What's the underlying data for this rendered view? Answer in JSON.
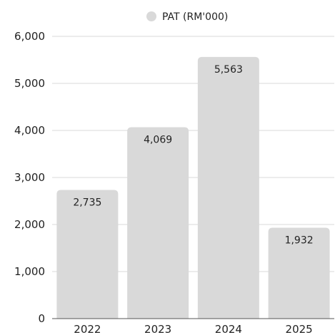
{
  "chart_data": {
    "type": "bar",
    "categories": [
      "2022",
      "2023",
      "2024",
      "2025"
    ],
    "series": [
      {
        "name": "PAT (RM'000)",
        "values": [
          2735,
          4069,
          5563,
          1932
        ],
        "value_labels": [
          "2,735",
          "4,069",
          "5,563",
          "1,932"
        ]
      }
    ],
    "ylim": [
      0,
      6000
    ],
    "yticks": [
      0,
      1000,
      2000,
      3000,
      4000,
      5000,
      6000
    ],
    "ytick_labels": [
      "0",
      "1,000",
      "2,000",
      "3,000",
      "4,000",
      "5,000",
      "6,000"
    ],
    "grid": true,
    "legend_position": "top-center",
    "colors": {
      "bar": "#d9d9d9",
      "grid": "#d9d9d9",
      "text": "#222222",
      "baseline": "#555555"
    }
  }
}
